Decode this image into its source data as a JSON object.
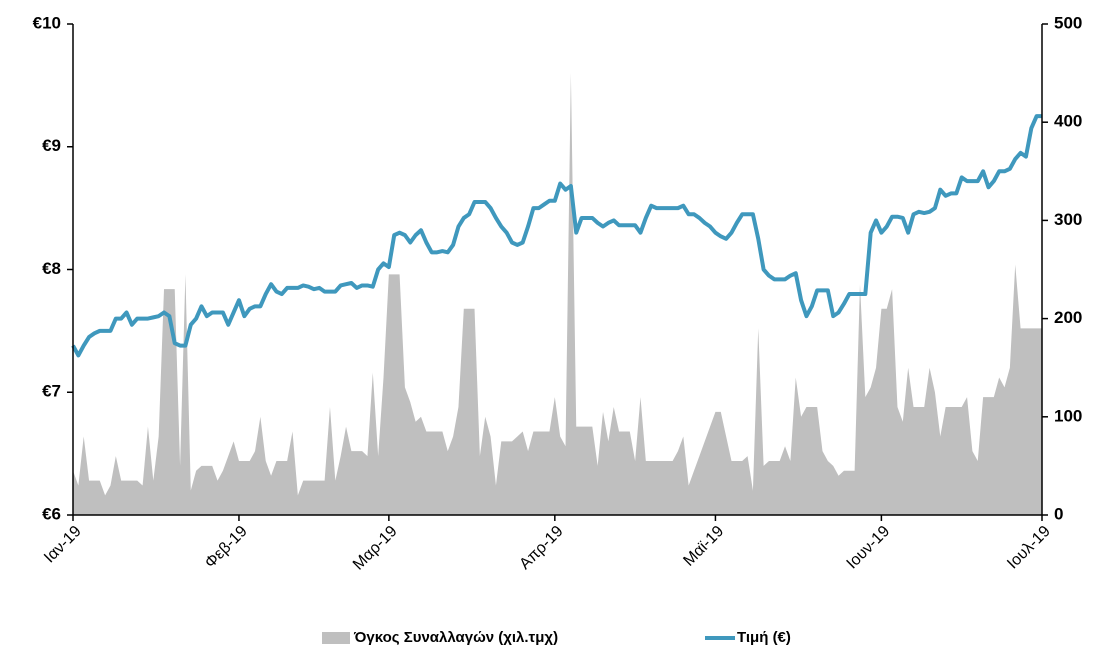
{
  "chart_data": {
    "type": "line",
    "legend": "bottom",
    "grid": false,
    "categories": [
      "Ιαν-19",
      null,
      null,
      null,
      null,
      null,
      null,
      null,
      null,
      null,
      null,
      null,
      null,
      null,
      null,
      null,
      null,
      null,
      null,
      null,
      null,
      null,
      null,
      null,
      null,
      null,
      null,
      null,
      null,
      null,
      null,
      "Φεβ-19",
      null,
      null,
      null,
      null,
      null,
      null,
      null,
      null,
      null,
      null,
      null,
      null,
      null,
      null,
      null,
      null,
      null,
      null,
      null,
      null,
      null,
      null,
      null,
      null,
      null,
      null,
      null,
      "Μαρ-19",
      null,
      null,
      null,
      null,
      null,
      null,
      null,
      null,
      null,
      null,
      null,
      null,
      null,
      null,
      null,
      null,
      null,
      null,
      null,
      null,
      null,
      null,
      null,
      null,
      null,
      null,
      null,
      null,
      null,
      null,
      "Απρ-19",
      null,
      null,
      null,
      null,
      null,
      null,
      null,
      null,
      null,
      null,
      null,
      null,
      null,
      null,
      null,
      null,
      null,
      null,
      null,
      null,
      null,
      null,
      null,
      null,
      null,
      null,
      null,
      null,
      null,
      "Μαϊ-19",
      null,
      null,
      null,
      null,
      null,
      null,
      null,
      null,
      null,
      null,
      null,
      null,
      null,
      null,
      null,
      null,
      null,
      null,
      null,
      null,
      null,
      null,
      null,
      null,
      null,
      null,
      null,
      null,
      null,
      null,
      "Ιουν-19",
      null,
      null,
      null,
      null,
      null,
      null,
      null,
      null,
      null,
      null,
      null,
      null,
      null,
      null,
      null,
      null,
      null,
      null,
      null,
      null,
      null,
      null,
      null,
      null,
      null,
      null,
      null,
      null,
      null,
      "Ιουλ-19"
    ],
    "series": [
      {
        "name": "Όγκος Συναλλαγών (χιλ.τμχ)",
        "type": "area",
        "axis": "y2",
        "color": "#bfbfbf",
        "values": [
          45,
          30,
          80,
          35,
          35,
          35,
          20,
          30,
          60,
          35,
          35,
          35,
          35,
          30,
          90,
          35,
          80,
          230,
          230,
          230,
          50,
          245,
          25,
          45,
          50,
          50,
          50,
          35,
          45,
          60,
          75,
          55,
          55,
          55,
          65,
          100,
          55,
          40,
          55,
          55,
          55,
          85,
          20,
          35,
          35,
          35,
          35,
          35,
          110,
          35,
          60,
          90,
          65,
          65,
          65,
          60,
          145,
          60,
          140,
          245,
          245,
          245,
          130,
          115,
          95,
          100,
          85,
          85,
          85,
          85,
          65,
          80,
          110,
          210,
          210,
          210,
          60,
          100,
          80,
          30,
          75,
          75,
          75,
          80,
          85,
          65,
          85,
          85,
          85,
          85,
          120,
          80,
          70,
          450,
          90,
          90,
          90,
          90,
          50,
          105,
          75,
          110,
          85,
          85,
          85,
          55,
          120,
          55,
          55,
          55,
          55,
          55,
          55,
          65,
          80,
          30,
          45,
          60,
          75,
          90,
          105,
          105,
          80,
          55,
          55,
          55,
          60,
          25,
          190,
          50,
          55,
          55,
          55,
          70,
          55,
          140,
          100,
          110,
          110,
          110,
          65,
          55,
          50,
          40,
          45,
          45,
          45,
          235,
          120,
          130,
          150,
          210,
          210,
          230,
          110,
          95,
          150,
          110,
          110,
          110,
          150,
          125,
          80,
          110,
          110,
          110,
          110,
          120,
          65,
          55,
          120,
          120,
          120,
          140,
          130,
          150,
          255,
          190,
          190,
          190,
          190,
          190
        ]
      },
      {
        "name": "Τιμή (€)",
        "type": "line",
        "axis": "y",
        "color": "#3f98bd",
        "values": [
          7.38,
          7.3,
          7.38,
          7.45,
          7.48,
          7.5,
          7.5,
          7.5,
          7.6,
          7.6,
          7.65,
          7.55,
          7.6,
          7.6,
          7.6,
          7.61,
          7.62,
          7.65,
          7.62,
          7.4,
          7.38,
          7.38,
          7.55,
          7.6,
          7.7,
          7.62,
          7.65,
          7.65,
          7.65,
          7.55,
          7.65,
          7.75,
          7.62,
          7.68,
          7.7,
          7.7,
          7.8,
          7.88,
          7.82,
          7.8,
          7.85,
          7.85,
          7.85,
          7.87,
          7.86,
          7.84,
          7.85,
          7.82,
          7.82,
          7.82,
          7.87,
          7.88,
          7.89,
          7.85,
          7.87,
          7.87,
          7.86,
          8.0,
          8.05,
          8.02,
          8.28,
          8.3,
          8.28,
          8.22,
          8.28,
          8.32,
          8.22,
          8.14,
          8.14,
          8.15,
          8.14,
          8.2,
          8.35,
          8.42,
          8.45,
          8.55,
          8.55,
          8.55,
          8.5,
          8.42,
          8.35,
          8.3,
          8.22,
          8.2,
          8.22,
          8.35,
          8.5,
          8.5,
          8.53,
          8.56,
          8.56,
          8.7,
          8.65,
          8.68,
          8.3,
          8.42,
          8.42,
          8.42,
          8.38,
          8.35,
          8.38,
          8.4,
          8.36,
          8.36,
          8.36,
          8.36,
          8.3,
          8.42,
          8.52,
          8.5,
          8.5,
          8.5,
          8.5,
          8.5,
          8.52,
          8.45,
          8.45,
          8.42,
          8.38,
          8.35,
          8.3,
          8.27,
          8.25,
          8.3,
          8.38,
          8.45,
          8.45,
          8.45,
          8.25,
          8.0,
          7.95,
          7.92,
          7.92,
          7.92,
          7.95,
          7.97,
          7.75,
          7.62,
          7.7,
          7.83,
          7.83,
          7.83,
          7.62,
          7.65,
          7.72,
          7.8,
          7.8,
          7.8,
          7.8,
          8.3,
          8.4,
          8.3,
          8.35,
          8.43,
          8.43,
          8.42,
          8.3,
          8.45,
          8.47,
          8.46,
          8.47,
          8.5,
          8.65,
          8.6,
          8.62,
          8.62,
          8.75,
          8.72,
          8.72,
          8.72,
          8.8,
          8.67,
          8.72,
          8.8,
          8.8,
          8.82,
          8.9,
          8.95,
          8.92,
          9.15,
          9.25,
          9.25
        ]
      }
    ],
    "ylim": [
      6,
      10
    ],
    "yticks": [
      {
        "value": 6,
        "label": "€6"
      },
      {
        "value": 7,
        "label": "€7"
      },
      {
        "value": 8,
        "label": "€8"
      },
      {
        "value": 9,
        "label": "€9"
      },
      {
        "value": 10,
        "label": "€10"
      }
    ],
    "y2lim": [
      0,
      500
    ],
    "y2ticks": [
      0,
      100,
      200,
      300,
      400,
      500
    ]
  }
}
